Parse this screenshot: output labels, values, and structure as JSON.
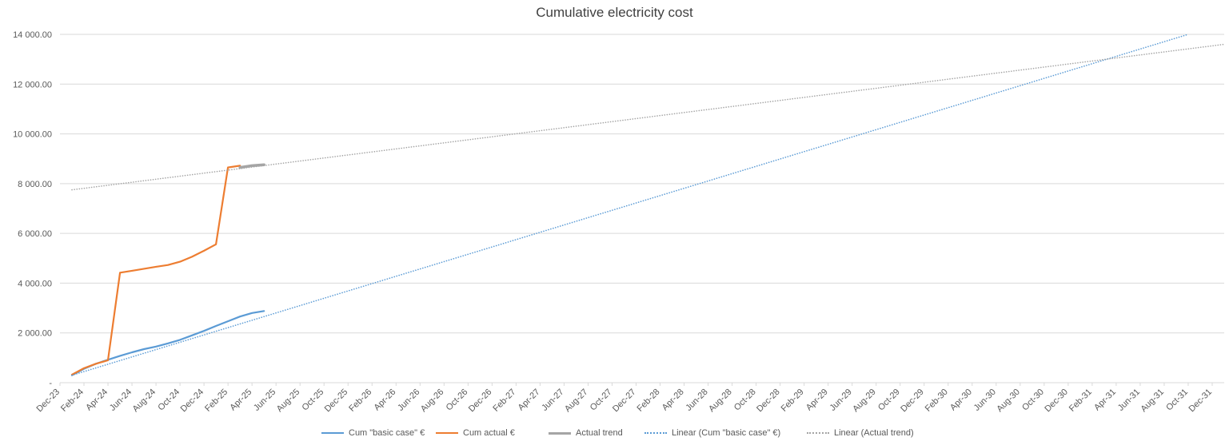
{
  "chart_data": {
    "type": "line",
    "title": "Cumulative electricity cost",
    "xlabel": "",
    "ylabel": "",
    "ylim": [
      0,
      14000
    ],
    "y_ticks": [
      0,
      2000,
      4000,
      6000,
      8000,
      10000,
      12000,
      14000
    ],
    "y_tick_labels": [
      "-",
      "2 000.00",
      "4 000.00",
      "6 000.00",
      "8 000.00",
      "10 000.00",
      "12 000.00",
      "14 000.00"
    ],
    "x_axis": {
      "start": "Dec-23",
      "end": "Dec-31",
      "unit": "month"
    },
    "x_tick_labels": [
      "Dec-23",
      "Feb-24",
      "Apr-24",
      "Jun-24",
      "Aug-24",
      "Oct-24",
      "Dec-24",
      "Feb-25",
      "Apr-25",
      "Jun-25",
      "Aug-25",
      "Oct-25",
      "Dec-25",
      "Feb-26",
      "Apr-26",
      "Jun-26",
      "Aug-26",
      "Oct-26",
      "Dec-26",
      "Feb-27",
      "Apr-27",
      "Jun-27",
      "Aug-27",
      "Oct-27",
      "Dec-27",
      "Feb-28",
      "Apr-28",
      "Jun-28",
      "Aug-28",
      "Oct-28",
      "Dec-28",
      "Feb-29",
      "Apr-29",
      "Jun-29",
      "Aug-29",
      "Oct-29",
      "Dec-29",
      "Feb-30",
      "Apr-30",
      "Jun-30",
      "Aug-30",
      "Oct-30",
      "Dec-30",
      "Feb-31",
      "Apr-31",
      "Jun-31",
      "Aug-31",
      "Oct-31",
      "Dec-31"
    ],
    "grid": true,
    "legend_position": "bottom",
    "series": [
      {
        "name": "Cum \"basic case\" €",
        "color": "#5b9bd5",
        "style": "solid",
        "x": [
          "Jan-24",
          "Feb-24",
          "Mar-24",
          "Apr-24",
          "May-24",
          "Jun-24",
          "Jul-24",
          "Aug-24",
          "Sep-24",
          "Oct-24",
          "Nov-24",
          "Dec-24",
          "Jan-25",
          "Feb-25",
          "Mar-25",
          "Apr-25",
          "May-25"
        ],
        "values": [
          300,
          560,
          760,
          920,
          1080,
          1220,
          1350,
          1450,
          1580,
          1720,
          1900,
          2080,
          2280,
          2470,
          2660,
          2800,
          2880
        ]
      },
      {
        "name": "Cum actual €",
        "color": "#ed7d31",
        "style": "solid",
        "x": [
          "Jan-24",
          "Feb-24",
          "Mar-24",
          "Apr-24",
          "May-24",
          "Jun-24",
          "Jul-24",
          "Aug-24",
          "Sep-24",
          "Oct-24",
          "Nov-24",
          "Dec-24",
          "Jan-25",
          "Feb-25",
          "Mar-25"
        ],
        "values": [
          320,
          580,
          760,
          900,
          4420,
          4500,
          4580,
          4660,
          4730,
          4860,
          5060,
          5300,
          5560,
          8650,
          8720
        ]
      },
      {
        "name": "Actual trend",
        "color": "#a5a5a5",
        "style": "solid",
        "x": [
          "Mar-25",
          "Apr-25",
          "May-25"
        ],
        "values": [
          8650,
          8720,
          8760
        ]
      },
      {
        "name": "Linear (Cum \"basic case\" €)",
        "color": "#5b9bd5",
        "style": "dotted",
        "x": [
          "Jan-24",
          "Oct-31"
        ],
        "values": [
          300,
          14000
        ]
      },
      {
        "name": "Linear (Actual trend)",
        "color": "#a5a5a5",
        "style": "dotted",
        "x": [
          "Jan-24",
          "Jan-32"
        ],
        "values": [
          7750,
          13600
        ]
      }
    ]
  }
}
